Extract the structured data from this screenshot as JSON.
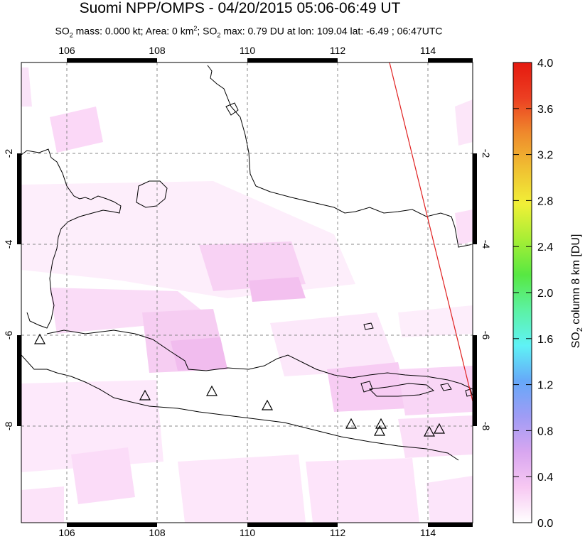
{
  "title": "Suomi NPP/OMPS - 04/20/2015 05:06-06:49 UT",
  "subtitle": {
    "p1": "SO",
    "p1_sub": "2",
    "p2": " mass: 0.000 kt; Area: 0 km",
    "p2_sup": "2",
    "p3": "; SO",
    "p3_sub": "2",
    "p4": " max: 0.79 DU at lon: 109.04 lat: -6.49 ; 06:47UTC"
  },
  "map": {
    "lon_ticks": [
      "106",
      "108",
      "110",
      "112",
      "114"
    ],
    "lat_ticks": [
      "-2",
      "-4",
      "-6",
      "-8"
    ],
    "lon_range": [
      105,
      115
    ],
    "lat_range": [
      -10,
      0
    ]
  },
  "colorbar": {
    "label_main": "SO",
    "label_sub": "2",
    "label_rest": " column 8 km [DU]",
    "ticks": [
      "4.0",
      "3.6",
      "3.2",
      "2.8",
      "2.4",
      "2.0",
      "1.6",
      "1.2",
      "0.8",
      "0.4",
      "0.0"
    ],
    "range": [
      0,
      4
    ],
    "colors": [
      "#ffffff",
      "#f7c8f2",
      "#d8a6f0",
      "#9f9cf5",
      "#66a8f8",
      "#5ff2f6",
      "#5cf2a4",
      "#57e842",
      "#a7ee35",
      "#f1f037",
      "#f0c032",
      "#ef8a2c",
      "#ec3f22",
      "#e5190f"
    ]
  },
  "colors": {
    "orbit_line": "#e02020",
    "coast": "#000000",
    "grid": "#777777"
  },
  "volcano_icon": "triangle-icon"
}
